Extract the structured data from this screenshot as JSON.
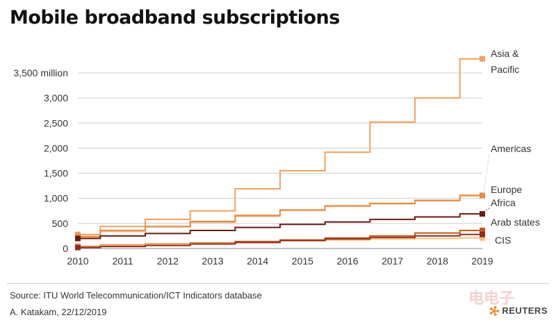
{
  "title": "Mobile broadband subscriptions",
  "source": "Source: ITU World Telecommunication/ICT Indicators database",
  "byline": "A. Katakam,  22/12/2019",
  "logo_text": "REUTERS",
  "watermark": "电电子",
  "chart_data": {
    "type": "line",
    "title": "Mobile broadband subscriptions",
    "step": true,
    "x": [
      2010,
      2011,
      2012,
      2013,
      2014,
      2015,
      2016,
      2017,
      2018,
      2019
    ],
    "xlim": [
      2010,
      2019
    ],
    "ylim": [
      0,
      3500
    ],
    "y_ticks": [
      {
        "value": 0,
        "label": "0"
      },
      {
        "value": 500,
        "label": "500"
      },
      {
        "value": 1000,
        "label": "1,000"
      },
      {
        "value": 1500,
        "label": "1,500"
      },
      {
        "value": 2000,
        "label": "2,000"
      },
      {
        "value": 2500,
        "label": "2,500"
      },
      {
        "value": 3000,
        "label": "3,000"
      },
      {
        "value": 3500,
        "label": "3,500 million"
      }
    ],
    "x_ticks": [
      "2010",
      "2011",
      "2012",
      "2013",
      "2014",
      "2015",
      "2016",
      "2017",
      "2018",
      "2019"
    ],
    "grid": true,
    "series": [
      {
        "name": "Asia & Pacific",
        "label_lines": [
          "Asia &",
          "Pacific"
        ],
        "color": "#f5a05a",
        "values": [
          280,
          440,
          580,
          750,
          1190,
          1550,
          1920,
          2520,
          3000,
          3780
        ]
      },
      {
        "name": "Americas",
        "label_lines": [
          "Americas"
        ],
        "color": "#f3b98a",
        "values": [
          220,
          340,
          430,
          520,
          640,
          760,
          840,
          890,
          950,
          1050
        ]
      },
      {
        "name": "Europe",
        "label_lines": [
          "Europe"
        ],
        "color": "#ec8a3c",
        "values": [
          240,
          360,
          440,
          540,
          660,
          770,
          850,
          900,
          960,
          1060
        ]
      },
      {
        "name": "Africa",
        "label_lines": [
          "Africa"
        ],
        "color": "#6b1a12",
        "values": [
          200,
          250,
          300,
          360,
          420,
          480,
          530,
          580,
          630,
          690
        ]
      },
      {
        "name": "Arab states",
        "label_lines": [
          "Arab states"
        ],
        "color": "#c8561f",
        "values": [
          40,
          70,
          90,
          110,
          140,
          170,
          210,
          250,
          310,
          360
        ]
      },
      {
        "name": "CIS",
        "label_lines": [
          "CIS"
        ],
        "color": "#f7c177",
        "values": [
          30,
          60,
          80,
          100,
          120,
          150,
          170,
          190,
          200,
          210
        ]
      },
      {
        "name": "",
        "label_lines": [],
        "color": "#9b2a1a",
        "values": [
          20,
          40,
          60,
          90,
          120,
          160,
          190,
          220,
          250,
          280
        ]
      }
    ]
  }
}
